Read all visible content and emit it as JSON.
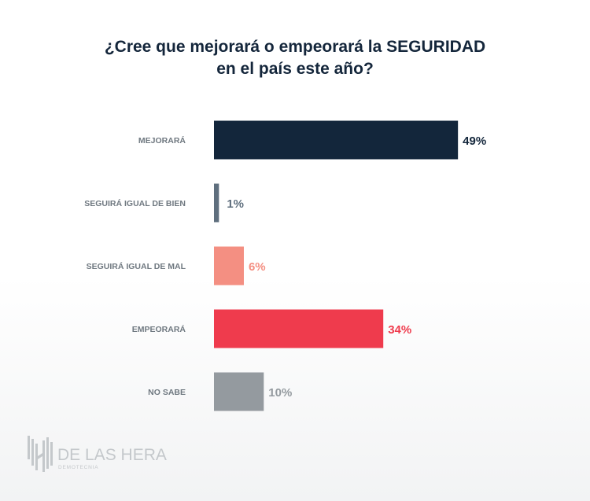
{
  "chart_data": {
    "type": "bar",
    "orientation": "horizontal",
    "title": "¿Cree que mejorará o empeorará la SEGURIDAD en el país este año?",
    "title_lines": [
      "¿Cree que mejorará o empeorará la SEGURIDAD",
      "en el país este año?"
    ],
    "categories": [
      "MEJORARÁ",
      "SEGUIRÁ IGUAL DE BIEN",
      "SEGUIRÁ IGUAL DE MAL",
      "EMPEORARÁ",
      "NO SABE"
    ],
    "values": [
      49,
      1,
      6,
      34,
      10
    ],
    "value_labels": [
      "49%",
      "1%",
      "6%",
      "34%",
      "10%"
    ],
    "colors": [
      "#13263b",
      "#5f6f7e",
      "#f48f82",
      "#ef3b4d",
      "#949a9f"
    ],
    "label_colors": [
      "#13263b",
      "#5f6f7e",
      "#f48f82",
      "#ef3b4d",
      "#949a9f"
    ],
    "xlabel": "",
    "ylabel": "",
    "xlim": [
      0,
      100
    ],
    "grid": false,
    "legend": "none"
  },
  "branding": {
    "name": "DE LAS HERAS",
    "subtitle": "DEMOTECNIA"
  }
}
